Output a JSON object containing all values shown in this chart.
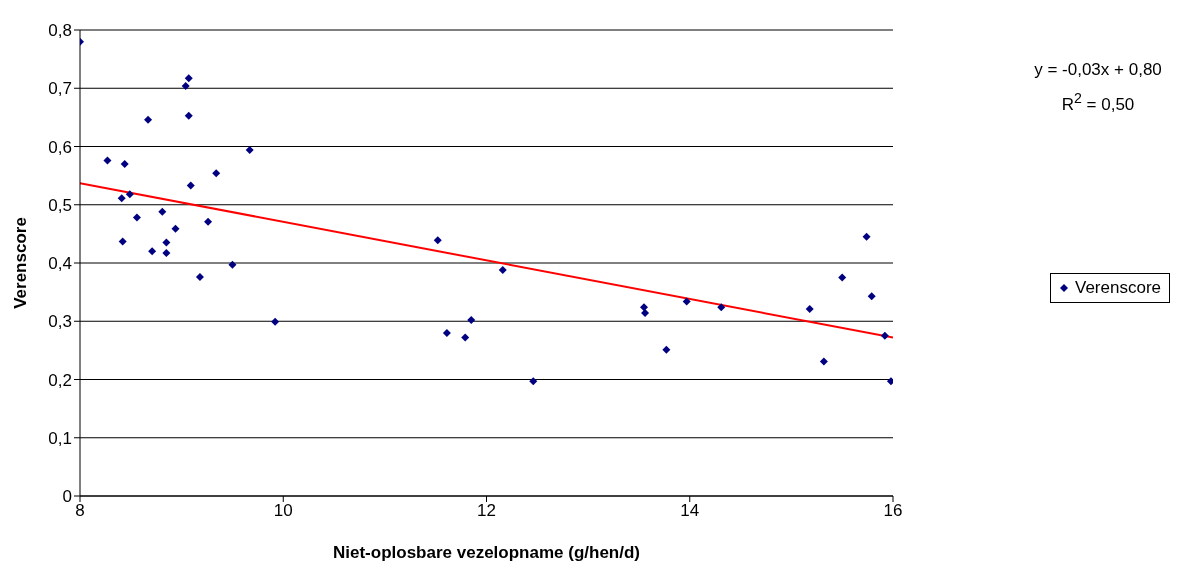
{
  "chart_data": {
    "type": "scatter",
    "xlabel": "Niet-oplosbare vezelopname (g/hen/d)",
    "ylabel": "Verenscore",
    "xlim": [
      8,
      16
    ],
    "xticks": [
      8,
      10,
      12,
      14,
      16
    ],
    "ylim": [
      0,
      0.8
    ],
    "yticks": [
      {
        "value": 0,
        "label": "0"
      },
      {
        "value": 0.1,
        "label": "0,1"
      },
      {
        "value": 0.2,
        "label": "0,2"
      },
      {
        "value": 0.3,
        "label": "0,3"
      },
      {
        "value": 0.4,
        "label": "0,4"
      },
      {
        "value": 0.5,
        "label": "0,5"
      },
      {
        "value": 0.6,
        "label": "0,6"
      },
      {
        "value": 0.7,
        "label": "0,7"
      },
      {
        "value": 0.8,
        "label": "0,8"
      }
    ],
    "grid": "y",
    "legend": "right",
    "annotations": [
      "y = -0,03x + 0,80",
      "R$^{2}$ = 0,50"
    ],
    "series": [
      {
        "name": "Verenscore",
        "marker": "diamond",
        "color": "#000080",
        "x": [
          8.0,
          8.27,
          8.44,
          8.41,
          8.49,
          8.42,
          8.56,
          8.67,
          8.71,
          8.81,
          8.85,
          8.85,
          8.94,
          9.04,
          9.07,
          9.07,
          9.09,
          9.18,
          9.26,
          9.34,
          9.5,
          9.67,
          9.92,
          11.52,
          11.61,
          11.79,
          11.85,
          12.16,
          12.46,
          13.55,
          13.56,
          13.77,
          13.97,
          14.31,
          15.17,
          15.18,
          15.32,
          15.5,
          15.74,
          15.79,
          15.92,
          15.98
        ],
        "values": [
          0.78,
          0.576,
          0.57,
          0.511,
          0.518,
          0.437,
          0.478,
          0.646,
          0.42,
          0.488,
          0.435,
          0.417,
          0.459,
          0.704,
          0.717,
          0.653,
          0.533,
          0.376,
          0.471,
          0.554,
          0.397,
          0.594,
          0.299,
          0.439,
          0.28,
          0.272,
          0.302,
          0.388,
          0.197,
          0.324,
          0.314,
          0.251,
          0.334,
          0.324,
          null,
          0.321,
          0.231,
          0.375,
          0.445,
          0.343,
          0.275,
          0.197
        ]
      },
      {
        "type": "line",
        "color": "#ff0000",
        "x": [
          8,
          16
        ],
        "values": [
          0.537,
          0.272
        ]
      }
    ]
  }
}
